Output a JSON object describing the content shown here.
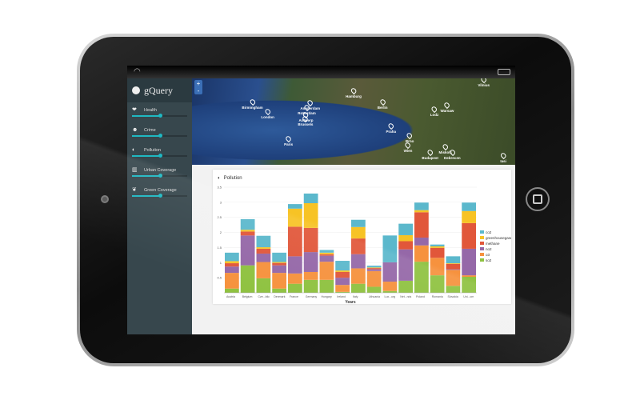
{
  "app": {
    "title": "gQuery"
  },
  "icons": {
    "wifi": "wifi-icon",
    "battery": "battery-icon",
    "logo": "gquery-logo-icon"
  },
  "map": {
    "zoom_in": "+",
    "zoom_out": "-",
    "cities": [
      {
        "name": "Birmingham",
        "lon": -1.9,
        "lat": 52.5
      },
      {
        "name": "London",
        "lon": -0.1,
        "lat": 51.5
      },
      {
        "name": "Amsterdam",
        "lon": 4.9,
        "lat": 52.4
      },
      {
        "name": "Rotterdam",
        "lon": 4.5,
        "lat": 51.9
      },
      {
        "name": "Antwerp",
        "lon": 4.4,
        "lat": 51.2
      },
      {
        "name": "Brussels",
        "lon": 4.35,
        "lat": 50.85
      },
      {
        "name": "Hamburg",
        "lon": 10,
        "lat": 53.55
      },
      {
        "name": "Berlin",
        "lon": 13.4,
        "lat": 52.5
      },
      {
        "name": "Warsaw",
        "lon": 21,
        "lat": 52.2
      },
      {
        "name": "Lodz",
        "lon": 19.5,
        "lat": 51.8
      },
      {
        "name": "Paris",
        "lon": 2.35,
        "lat": 48.85
      },
      {
        "name": "Praha",
        "lon": 14.4,
        "lat": 50.1
      },
      {
        "name": "Brno",
        "lon": 16.6,
        "lat": 49.2
      },
      {
        "name": "Wien",
        "lon": 16.4,
        "lat": 48.2
      },
      {
        "name": "Miskolc",
        "lon": 20.8,
        "lat": 48.1
      },
      {
        "name": "Budapest",
        "lon": 19,
        "lat": 47.5
      },
      {
        "name": "Debrecen",
        "lon": 21.6,
        "lat": 47.5
      },
      {
        "name": "Iasi",
        "lon": 27.6,
        "lat": 47.2
      },
      {
        "name": "Vilnius",
        "lon": 25.3,
        "lat": 54.7
      }
    ]
  },
  "sidebar": {
    "filters": [
      {
        "label": "Health",
        "icon": "heart-icon",
        "value": 0.5
      },
      {
        "label": "Crime",
        "icon": "crime-icon",
        "value": 0.5
      },
      {
        "label": "Pollution",
        "icon": "pollution-icon",
        "value": 0.5
      },
      {
        "label": "Urban Coverage",
        "icon": "building-icon",
        "value": 0.5
      },
      {
        "label": "Green Coverage",
        "icon": "leaf-icon",
        "value": 0.5
      }
    ]
  },
  "card": {
    "title": "Pollution"
  },
  "chart_data": {
    "type": "bar",
    "stacked": true,
    "title": "Pollution",
    "xlabel": "Years",
    "ylabel": "",
    "ylim": [
      0,
      3.5
    ],
    "yticks": [
      "0.5",
      "1",
      "1.5",
      "2",
      "2.5",
      "3",
      "3.5"
    ],
    "grid": true,
    "legend": "right",
    "categories": [
      "Austria",
      "Belgium",
      "Cze...blic",
      "Denmark",
      "France",
      "Germany",
      "Hungary",
      "Ireland",
      "Italy",
      "Lithuania",
      "Lux...urg",
      "Net...nds",
      "Poland",
      "Romania",
      "Slovakia",
      "Uni...om"
    ],
    "series": [
      {
        "name": "so2",
        "color": "#8fc241",
        "values": [
          0.14,
          0.91,
          0.48,
          0.14,
          0.3,
          0.43,
          0.43,
          0.03,
          0.3,
          0.2,
          0.06,
          0.4,
          1.03,
          0.58,
          0.23,
          0.53
        ]
      },
      {
        "name": "o3",
        "color": "#f6923e",
        "values": [
          0.52,
          0,
          0.54,
          0.52,
          0.34,
          0.26,
          0.6,
          0.23,
          0.51,
          0.52,
          0.31,
          0,
          0.54,
          0.58,
          0.53,
          0.05
        ]
      },
      {
        "name": "no2",
        "color": "#9568a8",
        "values": [
          0.21,
          0.99,
          0.28,
          0.25,
          0.57,
          0.66,
          0.2,
          0.24,
          0.47,
          0.06,
          0.64,
          1.04,
          0.26,
          0,
          0.02,
          0.88
        ]
      },
      {
        "name": "methane",
        "color": "#e1573a",
        "values": [
          0.11,
          0.13,
          0.16,
          0.08,
          0.98,
          0.8,
          0.05,
          0.19,
          0.52,
          0.04,
          0,
          0.27,
          0.84,
          0.33,
          0.18,
          0.85
        ]
      },
      {
        "name": "greenhousegases",
        "color": "#f7c325",
        "values": [
          0.07,
          0.06,
          0.05,
          0.03,
          0.6,
          0.82,
          0.05,
          0.05,
          0.38,
          0.02,
          0,
          0.2,
          0.07,
          0.05,
          0.02,
          0.4
        ]
      },
      {
        "name": "co2",
        "color": "#5bb8cc",
        "values": [
          0.28,
          0.35,
          0.38,
          0.31,
          0.15,
          0.32,
          0.09,
          0.32,
          0.24,
          0.06,
          0.89,
          0.38,
          0.25,
          0.06,
          0.23,
          0.28
        ]
      }
    ]
  }
}
